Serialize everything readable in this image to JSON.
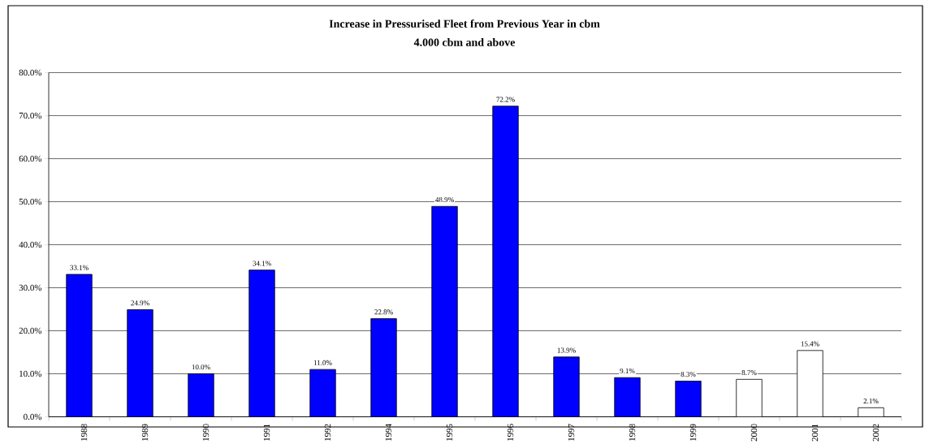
{
  "chart_data": {
    "type": "bar",
    "title": "Increase in Pressurised Fleet from Previous Year in cbm",
    "subtitle": "4.000 cbm and above",
    "categories": [
      "1988",
      "1989",
      "1990",
      "1991",
      "1992",
      "1994",
      "1995",
      "1996",
      "1997",
      "1998",
      "1999",
      "2000",
      "2001",
      "2002"
    ],
    "values": [
      33.1,
      24.9,
      10.0,
      34.1,
      11.0,
      22.8,
      48.9,
      72.2,
      13.9,
      9.1,
      8.3,
      8.7,
      15.4,
      2.1
    ],
    "colors": [
      "#0000ff",
      "#0000ff",
      "#0000ff",
      "#0000ff",
      "#0000ff",
      "#0000ff",
      "#0000ff",
      "#0000ff",
      "#0000ff",
      "#0000ff",
      "#0000ff",
      "#ffffff",
      "#ffffff",
      "#ffffff"
    ],
    "value_labels": [
      "33.1%",
      "24.9%",
      "10.0%",
      "34.1%",
      "11.0%",
      "22.8%",
      "48.9%",
      "72.2%",
      "13.9%",
      "9.1%",
      "8.3%",
      "8.7%",
      "15.4%",
      "2.1%"
    ],
    "ylim": [
      0,
      80
    ],
    "yticks": [
      {
        "value": 0,
        "label": "0.0%"
      },
      {
        "value": 10,
        "label": "10.0%"
      },
      {
        "value": 20,
        "label": "20.0%"
      },
      {
        "value": 30,
        "label": "30.0%"
      },
      {
        "value": 40,
        "label": "40.0%"
      },
      {
        "value": 50,
        "label": "50.0%"
      },
      {
        "value": 60,
        "label": "60.0%"
      },
      {
        "value": 70,
        "label": "70.0%"
      },
      {
        "value": 80,
        "label": "80.0%"
      }
    ],
    "grid": "y"
  }
}
